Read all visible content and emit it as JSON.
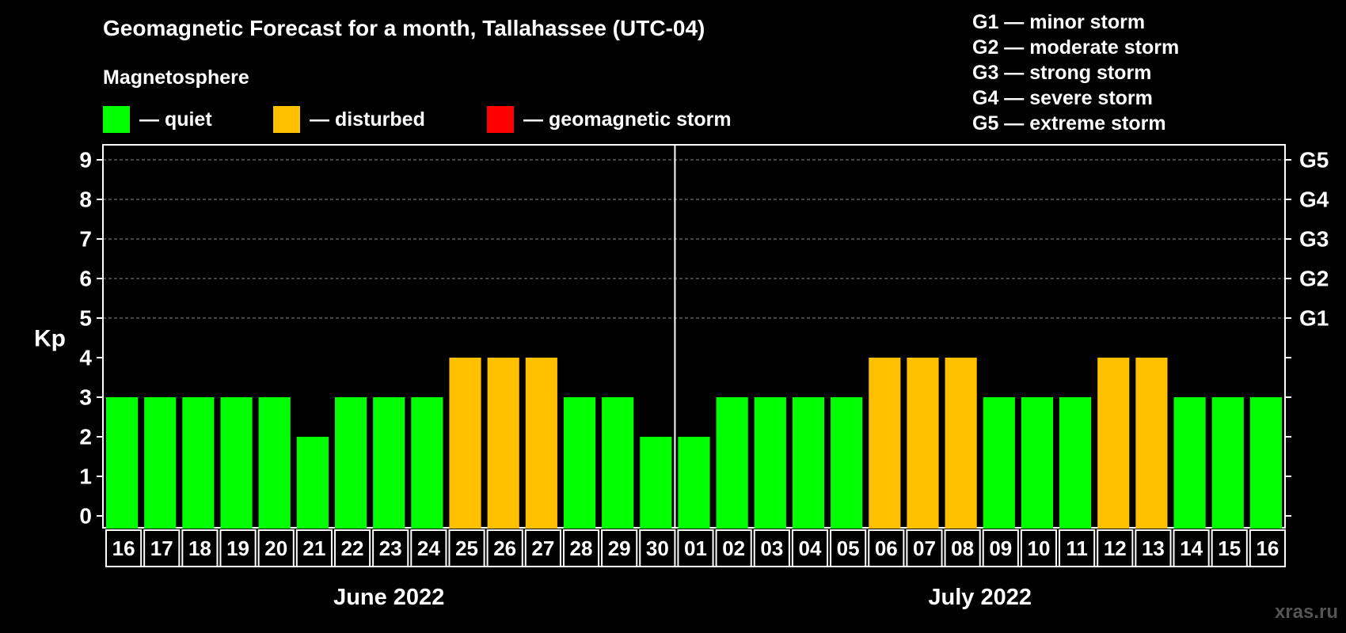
{
  "title": "Geomagnetic Forecast for a month, Tallahassee (UTC-04)",
  "legend": {
    "heading": "Magnetosphere",
    "items": [
      {
        "label": "— quiet",
        "color": "#00ff00"
      },
      {
        "label": "— disturbed",
        "color": "#ffc000"
      },
      {
        "label": "— geomagnetic storm",
        "color": "#ff0000"
      }
    ]
  },
  "g_legend": [
    "G1 — minor storm",
    "G2 — moderate storm",
    "G3 — strong storm",
    "G4 — severe storm",
    "G5 — extreme storm"
  ],
  "watermark": "xras.ru",
  "chart_data": {
    "type": "bar",
    "ylabel": "Kp",
    "ylim": [
      0,
      9
    ],
    "yticks": [
      "0",
      "1",
      "2",
      "3",
      "4",
      "5",
      "6",
      "7",
      "8",
      "9"
    ],
    "g_ticks": [
      {
        "kp": 5,
        "label": "G1"
      },
      {
        "kp": 6,
        "label": "G2"
      },
      {
        "kp": 7,
        "label": "G3"
      },
      {
        "kp": 8,
        "label": "G4"
      },
      {
        "kp": 9,
        "label": "G5"
      }
    ],
    "gridlines_at": [
      5,
      6,
      7,
      8,
      9
    ],
    "months": [
      {
        "label": "June 2022",
        "days": [
          "16",
          "17",
          "18",
          "19",
          "20",
          "21",
          "22",
          "23",
          "24",
          "25",
          "26",
          "27",
          "28",
          "29",
          "30"
        ]
      },
      {
        "label": "July 2022",
        "days": [
          "01",
          "02",
          "03",
          "04",
          "05",
          "06",
          "07",
          "08",
          "09",
          "10",
          "11",
          "12",
          "13",
          "14",
          "15",
          "16"
        ]
      }
    ],
    "categories": [
      "16",
      "17",
      "18",
      "19",
      "20",
      "21",
      "22",
      "23",
      "24",
      "25",
      "26",
      "27",
      "28",
      "29",
      "30",
      "01",
      "02",
      "03",
      "04",
      "05",
      "06",
      "07",
      "08",
      "09",
      "10",
      "11",
      "12",
      "13",
      "14",
      "15",
      "16"
    ],
    "values": [
      3,
      3,
      3,
      3,
      3,
      2,
      3,
      3,
      3,
      4,
      4,
      4,
      3,
      3,
      2,
      2,
      3,
      3,
      3,
      3,
      4,
      4,
      4,
      3,
      3,
      3,
      4,
      4,
      3,
      3,
      3
    ],
    "status": [
      "quiet",
      "quiet",
      "quiet",
      "quiet",
      "quiet",
      "quiet",
      "quiet",
      "quiet",
      "quiet",
      "disturbed",
      "disturbed",
      "disturbed",
      "quiet",
      "quiet",
      "quiet",
      "quiet",
      "quiet",
      "quiet",
      "quiet",
      "quiet",
      "disturbed",
      "disturbed",
      "disturbed",
      "quiet",
      "quiet",
      "quiet",
      "disturbed",
      "disturbed",
      "quiet",
      "quiet",
      "quiet"
    ],
    "colors": {
      "quiet": "#00ff00",
      "disturbed": "#ffc000",
      "storm": "#ff0000"
    }
  }
}
